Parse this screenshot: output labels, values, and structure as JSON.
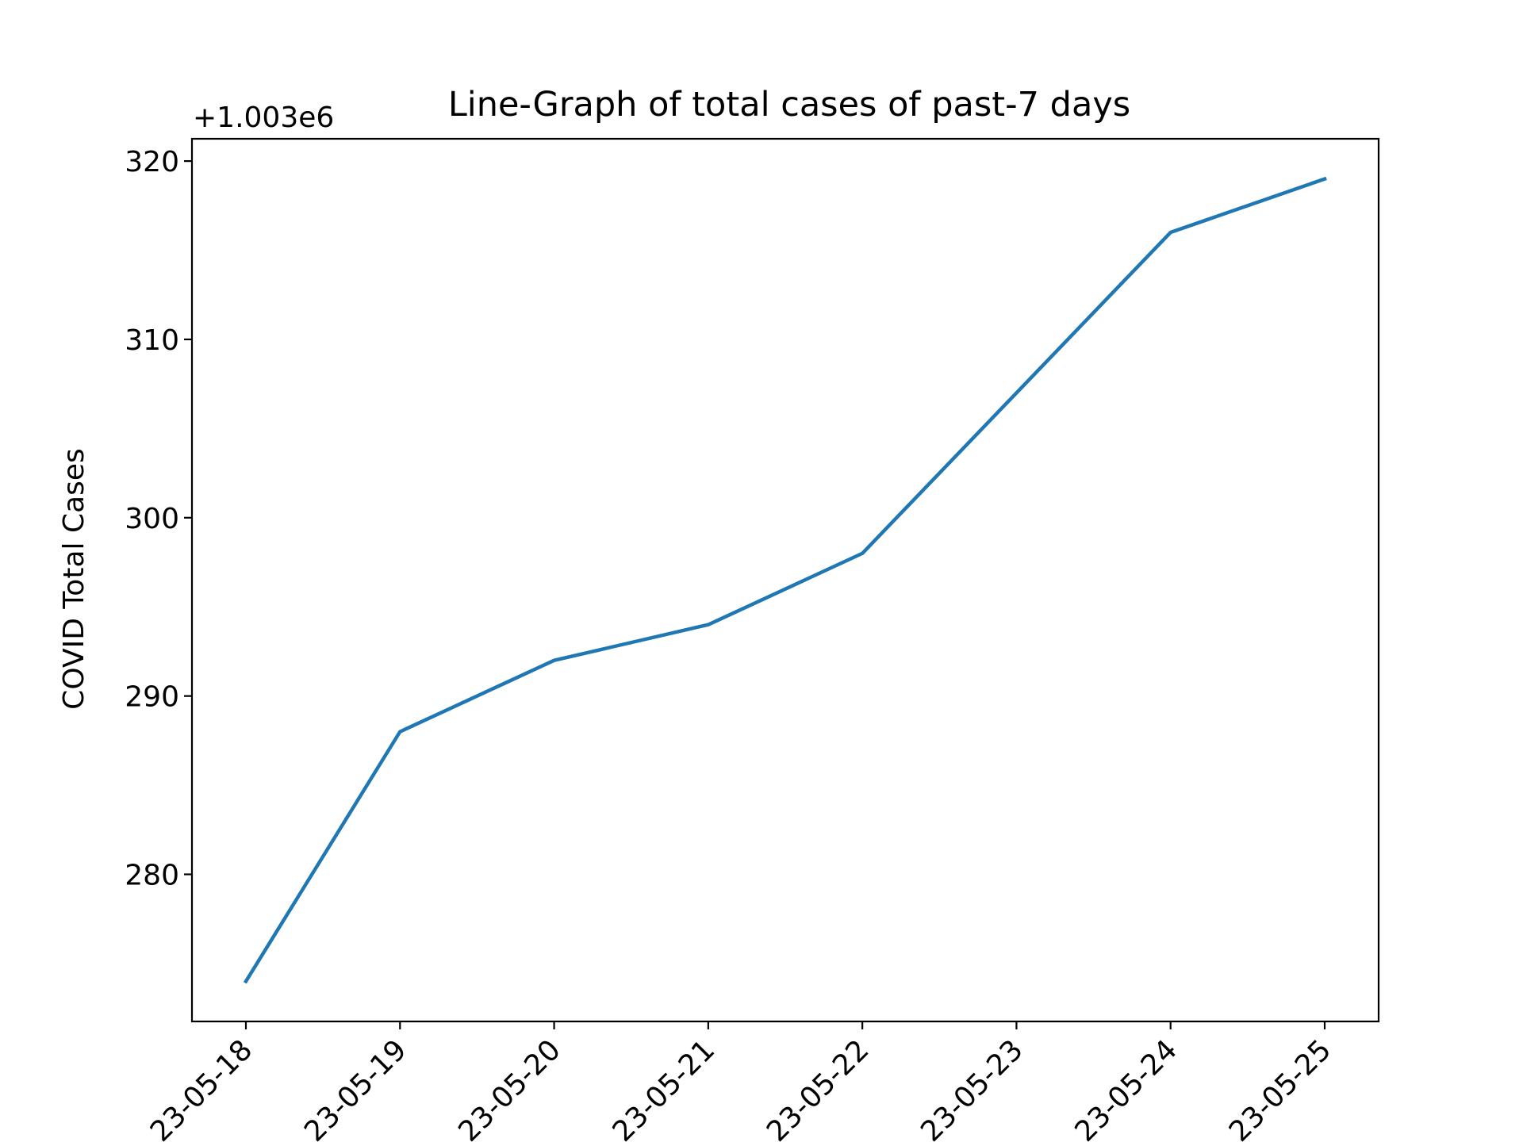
{
  "chart_data": {
    "type": "line",
    "title": "Line-Graph of total cases of past-7 days",
    "xlabel": "",
    "ylabel": "COVID Total Cases",
    "offset_label": "+1.003e6",
    "x": [
      "2023-05-18",
      "2023-05-19",
      "2023-05-20",
      "2023-05-21",
      "2023-05-22",
      "2023-05-23",
      "2023-05-24",
      "2023-05-25"
    ],
    "x_tick_labels": [
      "23-05-18",
      "23-05-19",
      "23-05-20",
      "23-05-21",
      "23-05-22",
      "23-05-23",
      "23-05-24",
      "23-05-25"
    ],
    "series": [
      {
        "color": "#1f77b4",
        "values": [
          1003274,
          1003288,
          1003292,
          1003294,
          1003298,
          1003307,
          1003316,
          1003319
        ]
      }
    ],
    "y_ticks": [
      280,
      290,
      300,
      310,
      320
    ],
    "y_offset": 1003000,
    "ylim": [
      1003271.75,
      1003321.25
    ],
    "grid": false,
    "legend": "none"
  }
}
